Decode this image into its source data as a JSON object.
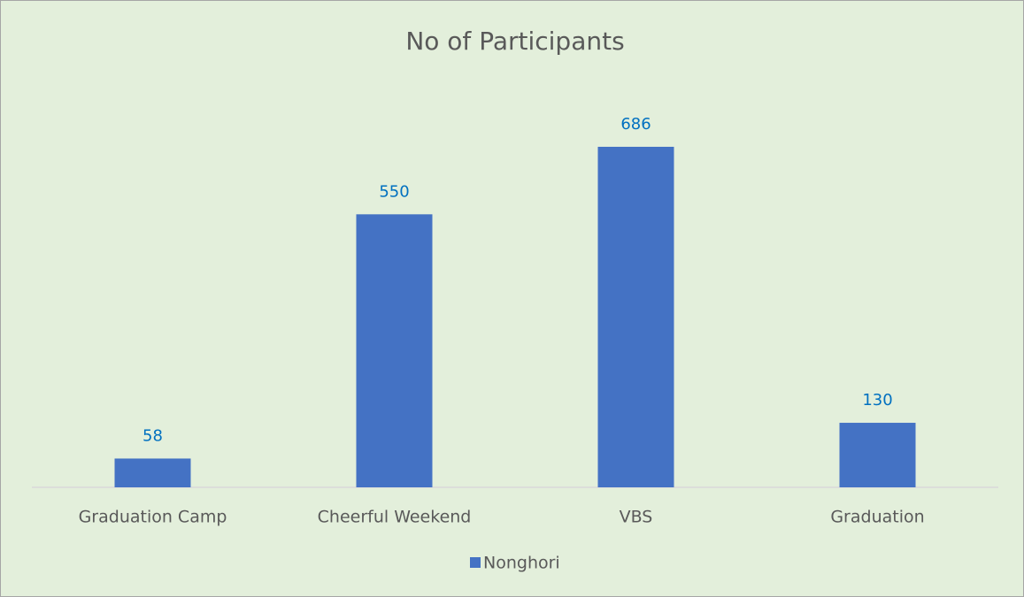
{
  "chart_data": {
    "type": "bar",
    "title": "No of Participants",
    "categories": [
      "Graduation Camp",
      "Cheerful Weekend",
      "VBS",
      "Graduation"
    ],
    "series": [
      {
        "name": "Nonghori",
        "color": "#4472c4",
        "values": [
          58,
          550,
          686,
          130
        ]
      }
    ],
    "ylim": [
      0,
      800
    ],
    "legend": "bottom"
  }
}
